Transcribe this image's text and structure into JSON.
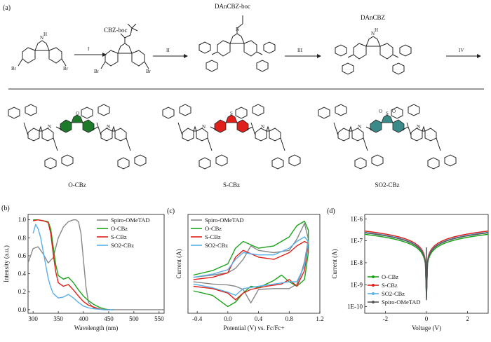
{
  "figure": {
    "panel_a_label": "(a)",
    "panel_b_label": "(b)",
    "panel_c_label": "(c)",
    "panel_d_label": "(d)"
  },
  "synthesis": {
    "compounds": [
      "CBZ-boc",
      "DAnCBZ-boc",
      "DAnCBZ"
    ],
    "steps": [
      "I",
      "II",
      "III",
      "IV"
    ],
    "atoms": {
      "br": "Br",
      "nh": "H",
      "n": "N",
      "o": "O",
      "s": "S"
    },
    "products": [
      "O-CBz",
      "S-CBz",
      "SO2-CBz"
    ],
    "core_colors": [
      "#1d7a2a",
      "#e0201a",
      "#3a8a8a"
    ]
  },
  "chart_data": [
    {
      "type": "line",
      "id": "b",
      "title": "",
      "xlabel": "Wavelength (nm)",
      "ylabel": "Intensity (a.u.)",
      "xlim": [
        290,
        560
      ],
      "ylim": [
        -0.04,
        1.06
      ],
      "xticks": [
        300,
        350,
        400,
        450,
        500,
        550
      ],
      "yticks": [
        0.0,
        0.2,
        0.4,
        0.6,
        0.8,
        1.0
      ],
      "xtick_labels": [
        "300",
        "350",
        "400",
        "450",
        "500",
        "550"
      ],
      "ytick_labels": [
        "0.0",
        "0.2",
        "0.4",
        "0.6",
        "0.8",
        "1.0"
      ],
      "legend": [
        "Spiro-OMeTAD",
        "O-CBz",
        "S-CBz",
        "SO2-CBz"
      ],
      "series": [
        {
          "name": "Spiro-OMeTAD",
          "color": "#888888",
          "x": [
            290,
            300,
            310,
            320,
            330,
            340,
            350,
            360,
            370,
            380,
            385,
            390,
            395,
            400,
            405,
            410,
            420,
            440,
            460,
            560
          ],
          "y": [
            0.52,
            0.68,
            0.7,
            0.62,
            0.52,
            0.58,
            0.8,
            0.92,
            0.98,
            1.0,
            1.0,
            0.98,
            0.85,
            0.55,
            0.25,
            0.08,
            0.02,
            0.0,
            0.0,
            0.0
          ]
        },
        {
          "name": "O-CBz",
          "color": "#1aa31a",
          "x": [
            300,
            310,
            320,
            330,
            335,
            340,
            345,
            350,
            360,
            370,
            380,
            390,
            400,
            410,
            420,
            430,
            440,
            450,
            460
          ],
          "y": [
            1.0,
            1.0,
            0.99,
            0.98,
            0.9,
            0.7,
            0.5,
            0.38,
            0.34,
            0.36,
            0.3,
            0.22,
            0.15,
            0.1,
            0.06,
            0.03,
            0.01,
            0.0,
            0.0
          ]
        },
        {
          "name": "S-CBz",
          "color": "#e0201a",
          "x": [
            300,
            310,
            320,
            330,
            335,
            340,
            345,
            350,
            360,
            370,
            380,
            390,
            400,
            410,
            420,
            430,
            440,
            450
          ],
          "y": [
            0.99,
            1.0,
            0.99,
            0.97,
            0.85,
            0.62,
            0.42,
            0.3,
            0.26,
            0.28,
            0.22,
            0.15,
            0.09,
            0.05,
            0.03,
            0.01,
            0.0,
            0.0
          ]
        },
        {
          "name": "SO2-CBz",
          "color": "#5ab0e8",
          "x": [
            300,
            305,
            310,
            315,
            320,
            325,
            330,
            335,
            340,
            350,
            360,
            370,
            380,
            390,
            400,
            410,
            420,
            440,
            460
          ],
          "y": [
            0.85,
            0.95,
            0.9,
            0.8,
            0.65,
            0.5,
            0.35,
            0.25,
            0.18,
            0.13,
            0.14,
            0.17,
            0.13,
            0.08,
            0.04,
            0.02,
            0.01,
            0.0,
            0.0
          ]
        }
      ]
    },
    {
      "type": "line",
      "id": "c",
      "title": "",
      "xlabel": "Potential (V) vs. Fc/Fc+",
      "ylabel": "Current (A)",
      "xlim": [
        -0.52,
        1.2
      ],
      "ylim": [
        -1.15,
        1.05
      ],
      "xticks": [
        -0.4,
        0.0,
        0.4,
        0.8,
        1.2
      ],
      "xtick_labels": [
        "-0.4",
        "0.0",
        "0.4",
        "0.8",
        "1.2"
      ],
      "legend": [
        "Spiro-OMeTAD",
        "O-CBz",
        "S-CBz",
        "SO2-CBz"
      ],
      "series": [
        {
          "name": "Spiro-OMeTAD",
          "color": "#888888",
          "x": [
            -0.45,
            -0.2,
            0.0,
            0.1,
            0.2,
            0.3,
            0.4,
            0.6,
            0.8,
            0.9,
            1.0,
            1.05,
            1.0,
            0.95,
            0.9,
            0.8,
            0.6,
            0.4,
            0.3,
            0.2,
            0.1,
            0.0,
            -0.2,
            -0.45
          ],
          "y": [
            -0.35,
            -0.3,
            -0.25,
            -0.15,
            0.05,
            0.35,
            0.25,
            0.2,
            0.25,
            0.5,
            0.85,
            0.5,
            0.0,
            -0.3,
            -0.5,
            -0.6,
            -0.6,
            -0.62,
            -0.92,
            -0.62,
            -0.55,
            -0.52,
            -0.5,
            -0.45
          ]
        },
        {
          "name": "O-CBz",
          "color": "#1aa31a",
          "x": [
            -0.45,
            -0.2,
            0.0,
            0.1,
            0.2,
            0.4,
            0.6,
            0.8,
            0.9,
            1.0,
            1.05,
            1.05,
            1.0,
            0.9,
            0.8,
            0.7,
            0.6,
            0.4,
            0.3,
            0.2,
            0.1,
            0.0,
            -0.2,
            -0.45
          ],
          "y": [
            -0.3,
            -0.2,
            -0.05,
            0.3,
            0.45,
            0.3,
            0.35,
            0.55,
            0.8,
            0.9,
            0.7,
            0.2,
            -0.4,
            -0.55,
            -0.45,
            -0.3,
            -0.42,
            -0.58,
            -0.55,
            -0.7,
            -0.9,
            -1.0,
            -0.75,
            -0.65
          ]
        },
        {
          "name": "S-CBz",
          "color": "#e0201a",
          "x": [
            -0.45,
            -0.2,
            0.0,
            0.1,
            0.2,
            0.4,
            0.6,
            0.8,
            0.9,
            1.0,
            1.05,
            1.0,
            0.9,
            0.8,
            0.7,
            0.5,
            0.3,
            0.2,
            0.1,
            0.0,
            -0.2,
            -0.45
          ],
          "y": [
            -0.4,
            -0.35,
            -0.25,
            0.1,
            0.25,
            0.1,
            0.05,
            0.2,
            0.35,
            0.45,
            0.4,
            -0.2,
            -0.55,
            -0.4,
            -0.5,
            -0.55,
            -0.62,
            -0.7,
            -0.85,
            -0.7,
            -0.6,
            -0.55
          ]
        },
        {
          "name": "SO2-CBz",
          "color": "#5ab0e8",
          "x": [
            -0.45,
            -0.2,
            0.0,
            0.1,
            0.2,
            0.4,
            0.6,
            0.8,
            0.9,
            1.0,
            1.05,
            1.0,
            0.9,
            0.8,
            0.6,
            0.4,
            0.2,
            0.1,
            0.0,
            -0.2,
            -0.45
          ],
          "y": [
            -0.35,
            -0.28,
            -0.18,
            0.05,
            0.2,
            0.15,
            0.15,
            0.3,
            0.45,
            0.55,
            0.45,
            -0.1,
            -0.45,
            -0.45,
            -0.5,
            -0.55,
            -0.6,
            -0.75,
            -0.68,
            -0.58,
            -0.5
          ]
        }
      ]
    },
    {
      "type": "line",
      "id": "d",
      "title": "",
      "xlabel": "Voltage (V)",
      "ylabel": "Current (A)",
      "xlim": [
        -3,
        3
      ],
      "ylim_log10": [
        -10.3,
        -5.8
      ],
      "xticks": [
        -2,
        0,
        2
      ],
      "xtick_labels": [
        "-2",
        "0",
        "2"
      ],
      "yticks_log10": [
        -10,
        -9,
        -8,
        -7,
        -6
      ],
      "ytick_labels": [
        "1E-10",
        "1E-9",
        "1E-8",
        "1E-7",
        "1E-6"
      ],
      "legend": [
        "O-CBz",
        "S-CBz",
        "SO2-CBz",
        "Spiro-OMeTAD"
      ],
      "series": [
        {
          "name": "O-CBz",
          "color": "#1aa31a",
          "k": 0.8
        },
        {
          "name": "S-CBz",
          "color": "#e0201a",
          "k": 1.15
        },
        {
          "name": "SO2-CBz",
          "color": "#5ab0e8",
          "k": 1.0
        },
        {
          "name": "Spiro-OMeTAD",
          "color": "#555555",
          "k": 0.95
        }
      ]
    }
  ]
}
